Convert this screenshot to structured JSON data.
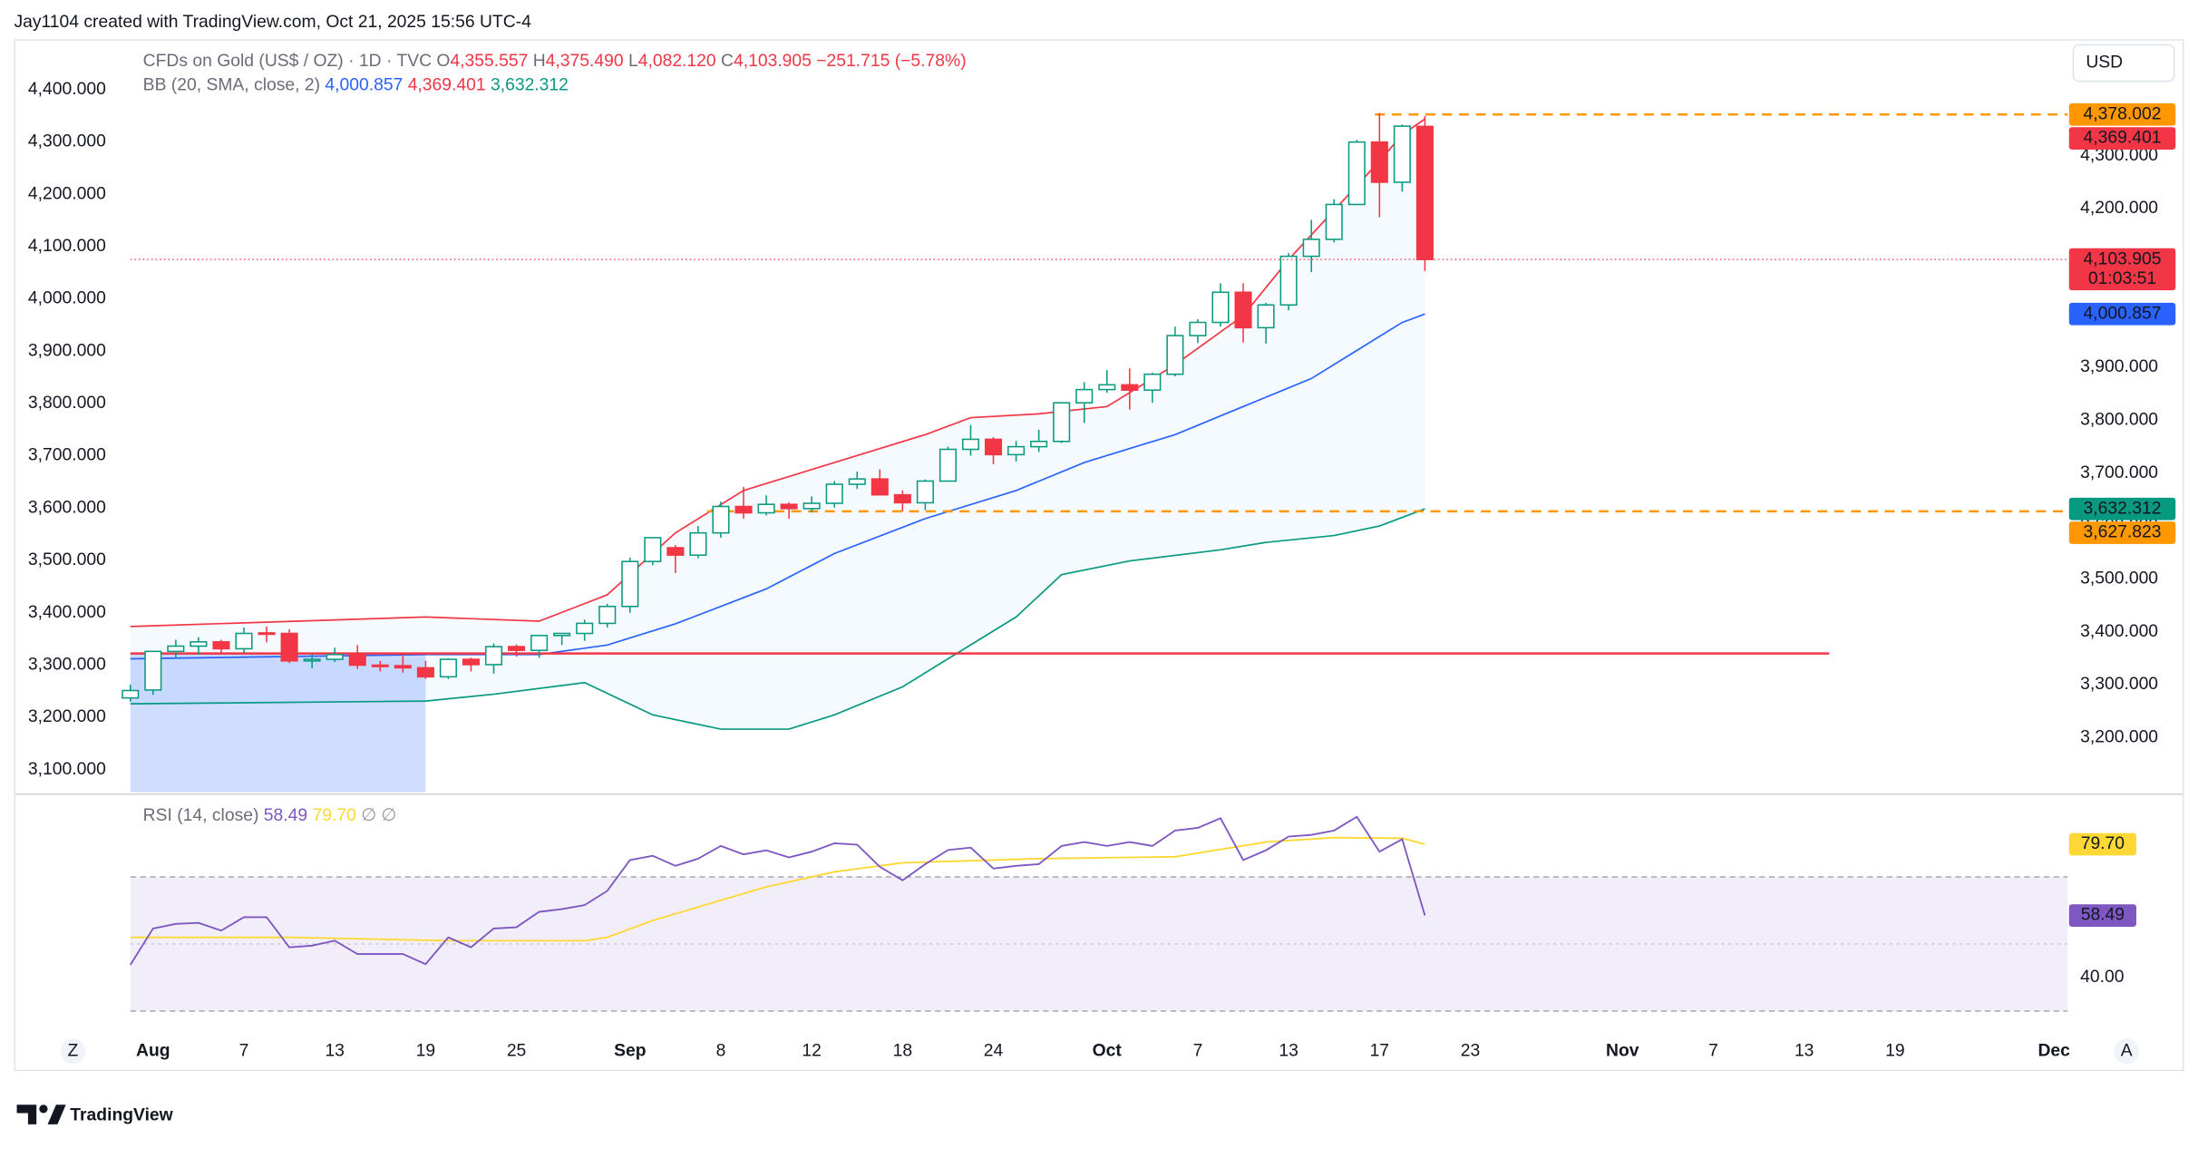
{
  "header": "Jay1104 created with TradingView.com, Oct 21, 2025 15:56 UTC-4",
  "currency": "USD",
  "brand": "TradingView",
  "buttons": [
    "Z",
    "A"
  ],
  "chart_data": [
    {
      "type": "candlestick",
      "title": "CFDs on Gold (US$ / OZ) · 1D · TVC",
      "legend_prefixes": [
        "O",
        "H",
        "L",
        "C"
      ],
      "last_values_labels": [
        "4,355.557",
        "4,375.490",
        "4,082.120",
        "4,103.905"
      ],
      "change_label": "−251.715 (−5.78%)",
      "countdown": "01:03:51",
      "up_color": "#089981",
      "down_color": "#f23645",
      "x": [
        0,
        1,
        2,
        3,
        4,
        5,
        6,
        7,
        8,
        9,
        10,
        11,
        12,
        13,
        14,
        15,
        16,
        17,
        18,
        19,
        20,
        21,
        22,
        23,
        24,
        25,
        26,
        27,
        28,
        29,
        30,
        31,
        32,
        33,
        34,
        35,
        36,
        37,
        38,
        39,
        40,
        41,
        42,
        43,
        44,
        45,
        46,
        47,
        48,
        49,
        50,
        51,
        52,
        53,
        54,
        55,
        56,
        57
      ],
      "open": [
        3275,
        3290,
        3363,
        3373,
        3381,
        3368,
        3398,
        3397,
        3345,
        3348,
        3357,
        3337,
        3336,
        3332,
        3315,
        3348,
        3338,
        3372,
        3365,
        3393,
        3397,
        3416,
        3448,
        3533,
        3559,
        3545,
        3587,
        3637,
        3625,
        3641,
        3633,
        3643,
        3679,
        3689,
        3659,
        3644,
        3685,
        3745,
        3764,
        3735,
        3750,
        3760,
        3833,
        3858,
        3867,
        3857,
        3887,
        3960,
        3985,
        4042,
        3975,
        4018,
        4110,
        4142,
        4208,
        4326,
        4250,
        4355.557
      ],
      "high": [
        3300,
        3363,
        3385,
        3390,
        3385,
        3408,
        3410,
        3405,
        3358,
        3370,
        3375,
        3345,
        3358,
        3345,
        3350,
        3351,
        3378,
        3376,
        3394,
        3398,
        3423,
        3453,
        3540,
        3578,
        3564,
        3600,
        3646,
        3674,
        3658,
        3645,
        3656,
        3685,
        3703,
        3707,
        3667,
        3688,
        3750,
        3791,
        3768,
        3761,
        3782,
        3834,
        3872,
        3895,
        3898,
        3890,
        3977,
        3991,
        4059,
        4059,
        4022,
        4116,
        4179,
        4218,
        4330,
        4381,
        4359,
        4375.49
      ],
      "low": [
        3268,
        3281,
        3350,
        3357,
        3360,
        3360,
        3380,
        3341,
        3331,
        3343,
        3330,
        3325,
        3323,
        3311,
        3311,
        3325,
        3321,
        3353,
        3351,
        3375,
        3383,
        3408,
        3436,
        3526,
        3511,
        3539,
        3578,
        3614,
        3620,
        3614,
        3626,
        3635,
        3670,
        3659,
        3628,
        3630,
        3684,
        3733,
        3717,
        3722,
        3740,
        3757,
        3795,
        3852,
        3820,
        3833,
        3883,
        3946,
        3977,
        3947,
        3945,
        4008,
        4080,
        4136,
        4207,
        4184,
        4232,
        4082.12
      ],
      "close": [
        3289,
        3363,
        3373,
        3381,
        3368,
        3397,
        3397,
        3345,
        3348,
        3357,
        3337,
        3336,
        3332,
        3315,
        3348,
        3338,
        3372,
        3365,
        3393,
        3397,
        3416,
        3448,
        3533,
        3578,
        3545,
        3587,
        3637,
        3625,
        3641,
        3633,
        3643,
        3679,
        3689,
        3659,
        3644,
        3685,
        3745,
        3764,
        3735,
        3750,
        3760,
        3833,
        3858,
        3867,
        3857,
        3887,
        3960,
        3985,
        4042,
        3975,
        4018,
        4110,
        4142,
        4208,
        4326,
        4250,
        4356,
        4103.905
      ],
      "xlim": [
        0,
        85.3
      ],
      "xticks": [
        {
          "value": 1,
          "label": "Aug"
        },
        {
          "value": 5,
          "label": "7"
        },
        {
          "value": 9,
          "label": "13"
        },
        {
          "value": 13,
          "label": "19"
        },
        {
          "value": 17,
          "label": "25"
        },
        {
          "value": 22,
          "label": "Sep"
        },
        {
          "value": 26,
          "label": "8"
        },
        {
          "value": 30,
          "label": "12"
        },
        {
          "value": 34,
          "label": "18"
        },
        {
          "value": 38,
          "label": "24"
        },
        {
          "value": 43,
          "label": "Oct"
        },
        {
          "value": 47,
          "label": "7"
        },
        {
          "value": 51,
          "label": "13"
        },
        {
          "value": 55,
          "label": "17"
        },
        {
          "value": 59,
          "label": "23"
        },
        {
          "value": 65.7,
          "label": "Nov"
        },
        {
          "value": 69.7,
          "label": "7"
        },
        {
          "value": 73.7,
          "label": "13"
        },
        {
          "value": 77.7,
          "label": "19"
        },
        {
          "value": 84.7,
          "label": "Dec"
        }
      ],
      "ylim": [
        3097,
        4515
      ],
      "yticks": [
        {
          "value": 4300,
          "label": "4,300.000"
        },
        {
          "value": 4200,
          "label": "4,200.000"
        },
        {
          "value": 4100,
          "label": "4,100.000"
        },
        {
          "value": 4000,
          "label": "4,000.000"
        },
        {
          "value": 3900,
          "label": "3,900.000"
        },
        {
          "value": 3800,
          "label": "3,800.000"
        },
        {
          "value": 3700,
          "label": "3,700.000"
        },
        {
          "value": 3600,
          "label": "3,600.000"
        },
        {
          "value": 3500,
          "label": "3,500.000"
        },
        {
          "value": 3400,
          "label": "3,400.000"
        },
        {
          "value": 3300,
          "label": "3,300.000"
        },
        {
          "value": 3200,
          "label": "3,200.000"
        }
      ],
      "y2lim": [
        3057,
        4491
      ],
      "y2ticks": [
        {
          "value": 4400,
          "label": "4,400.000"
        },
        {
          "value": 4300,
          "label": "4,300.000"
        },
        {
          "value": 4200,
          "label": "4,200.000"
        },
        {
          "value": 4100,
          "label": "4,100.000"
        },
        {
          "value": 4000,
          "label": "4,000.000"
        },
        {
          "value": 3900,
          "label": "3,900.000"
        },
        {
          "value": 3800,
          "label": "3,800.000"
        },
        {
          "value": 3700,
          "label": "3,700.000"
        },
        {
          "value": 3600,
          "label": "3,600.000"
        },
        {
          "value": 3500,
          "label": "3,500.000"
        },
        {
          "value": 3400,
          "label": "3,400.000"
        },
        {
          "value": 3300,
          "label": "3,300.000"
        },
        {
          "value": 3200,
          "label": "3,200.000"
        },
        {
          "value": 3100,
          "label": "3,100.000"
        }
      ],
      "bollinger": {
        "name": "BB (20, SMA, close, 2)",
        "fill": "rgba(33,150,243,0.05)",
        "series": [
          {
            "color": "#2962ff",
            "value_label": "4,000.857",
            "x": [
              0,
              13,
              18,
              21,
              24,
              28,
              31,
              35,
              39,
              42,
              46,
              49,
              52,
              54,
              56,
              57
            ],
            "values": [
              3349,
              3357,
              3357,
              3375,
              3415,
              3481,
              3548,
              3614,
              3667,
              3720,
              3773,
              3826,
              3879,
              3932,
              3985,
              4000.857
            ]
          },
          {
            "color": "#f23645",
            "value_label": "4,369.401",
            "x": [
              0,
              13,
              18,
              21,
              24,
              27,
              31,
              35,
              37,
              40,
              43,
              46,
              49,
              51,
              53,
              55,
              56,
              57
            ],
            "values": [
              3410,
              3428,
              3420,
              3470,
              3587,
              3667,
              3720,
              3773,
              3805,
              3812,
              3826,
              3905,
              3998,
              4104,
              4197,
              4290,
              4340,
              4369.401
            ]
          },
          {
            "color": "#089981",
            "value_label": "3,632.312",
            "x": [
              0,
              13,
              16,
              20,
              23,
              26,
              29,
              31,
              34,
              36,
              39,
              41,
              44,
              48,
              50,
              53,
              55,
              57
            ],
            "values": [
              3264,
              3269,
              3282,
              3304,
              3243,
              3216,
              3216,
              3243,
              3296,
              3349,
              3428,
              3508,
              3534,
              3555,
              3569,
              3582,
              3600,
              3632.312
            ]
          }
        ]
      },
      "levels": [
        {
          "value": 4378.002,
          "label": "4,378.002",
          "color": "#ff9800",
          "x_start": 54.8
        },
        {
          "value": 3627.823,
          "label": "3,627.823",
          "color": "#ff9800",
          "x_start": 25.4
        }
      ],
      "drawings": {
        "line": {
          "value": 3359,
          "x": [
            0,
            74.8
          ],
          "color": "#f23645"
        },
        "box": {
          "x": [
            0,
            13
          ],
          "top": 3359,
          "color": "rgba(41,98,255,0.22)"
        }
      }
    },
    {
      "type": "line",
      "title": "RSI (14, close)",
      "flags": [
        "∅",
        "∅"
      ],
      "xlim": [
        0,
        85.3
      ],
      "ylim": [
        23,
        94
      ],
      "yticks": [
        {
          "value": 40,
          "label": "40.00"
        }
      ],
      "bands": [
        70,
        30
      ],
      "band_fill": "rgba(126,87,194,0.1)",
      "series": [
        {
          "color": "#7e57c2",
          "value_label": "58.49",
          "x": [
            0,
            1,
            2,
            3,
            4,
            5,
            6,
            7,
            8,
            9,
            10,
            11,
            12,
            13,
            14,
            15,
            16,
            17,
            18,
            19,
            20,
            21,
            22,
            23,
            24,
            25,
            26,
            27,
            28,
            29,
            30,
            31,
            32,
            33,
            34,
            35,
            36,
            37,
            38,
            39,
            40,
            41,
            42,
            43,
            44,
            45,
            46,
            47,
            48,
            49,
            50,
            51,
            52,
            53,
            54,
            55,
            56,
            57
          ],
          "values": [
            43.8,
            54.6,
            56,
            56.3,
            54,
            58,
            58,
            49,
            49.5,
            51,
            47,
            47,
            47,
            44,
            52,
            49,
            54.6,
            55,
            59.6,
            60.4,
            61.6,
            65.8,
            75,
            76.3,
            73.3,
            75.4,
            79.2,
            76.7,
            77.9,
            75.8,
            77.5,
            80,
            79.6,
            73,
            69,
            73.8,
            78,
            78.7,
            72.5,
            73.3,
            73.8,
            79.2,
            80.4,
            79.2,
            80.4,
            79.2,
            83.8,
            84.6,
            87.5,
            75,
            77.9,
            82,
            82.5,
            83.8,
            87.9,
            77.5,
            81.2,
            58.49
          ]
        },
        {
          "color": "#fdd835",
          "value_label": "79.70",
          "x": [
            0,
            7,
            14,
            20,
            21,
            23,
            25,
            28,
            31,
            34,
            40,
            46,
            50,
            53,
            56,
            57
          ],
          "values": [
            52,
            52,
            51,
            51,
            52,
            57,
            61,
            67,
            71.5,
            74.2,
            75.4,
            76,
            80.4,
            81.7,
            81.5,
            79.7
          ]
        }
      ]
    }
  ]
}
